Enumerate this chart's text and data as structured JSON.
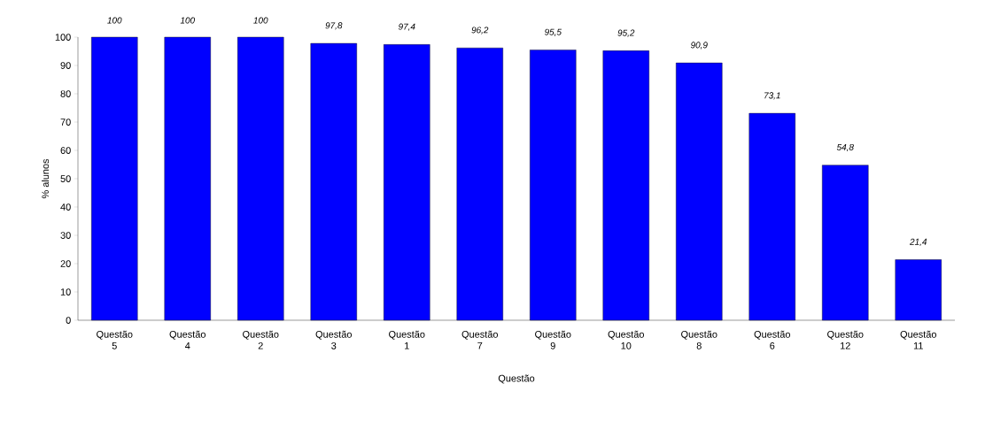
{
  "chart_data": {
    "type": "bar",
    "xlabel": "Questão",
    "ylabel": "% alunos",
    "categories": [
      "Questão 5",
      "Questão 4",
      "Questão 2",
      "Questão 3",
      "Questão 1",
      "Questão 7",
      "Questão 9",
      "Questão 10",
      "Questão 8",
      "Questão 6",
      "Questão 12",
      "Questão 11"
    ],
    "values": [
      100,
      100,
      100,
      97.8,
      97.4,
      96.2,
      95.5,
      95.2,
      90.9,
      73.1,
      54.8,
      21.4
    ],
    "value_labels": [
      "100",
      "100",
      "100",
      "97,8",
      "97,4",
      "96,2",
      "95,5",
      "95,2",
      "90,9",
      "73,1",
      "54,8",
      "21,4"
    ],
    "color": "#0000ff",
    "ylim": [
      0,
      100
    ],
    "yticks": [
      0,
      10,
      20,
      30,
      40,
      50,
      60,
      70,
      80,
      90,
      100
    ]
  }
}
